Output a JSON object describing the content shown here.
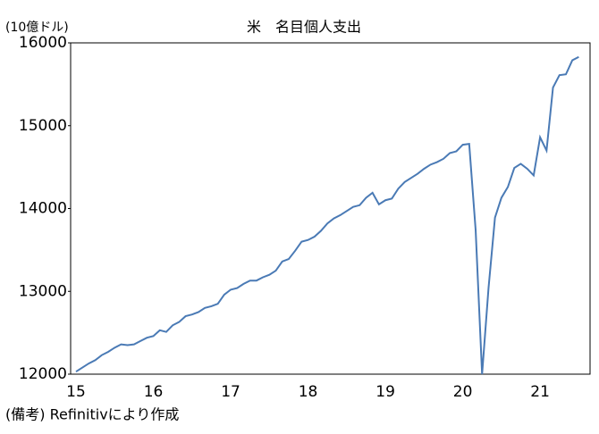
{
  "chart_data": {
    "type": "line",
    "title": "米　名目個人支出",
    "y_label": "(10億ドル)",
    "note": "(備考) Refinitivにより作成",
    "categories": [
      "15",
      null,
      null,
      null,
      null,
      null,
      null,
      null,
      null,
      null,
      null,
      null,
      "16",
      null,
      null,
      null,
      null,
      null,
      null,
      null,
      null,
      null,
      null,
      null,
      "17",
      null,
      null,
      null,
      null,
      null,
      null,
      null,
      null,
      null,
      null,
      null,
      "18",
      null,
      null,
      null,
      null,
      null,
      null,
      null,
      null,
      null,
      null,
      null,
      "19",
      null,
      null,
      null,
      null,
      null,
      null,
      null,
      null,
      null,
      null,
      null,
      "20",
      null,
      null,
      null,
      null,
      null,
      null,
      null,
      null,
      null,
      null,
      null,
      "21",
      null,
      null,
      null,
      null,
      null,
      null
    ],
    "series": [
      {
        "name": "名目個人支出",
        "color": "#4a7ab5",
        "values": [
          12030,
          12080,
          12130,
          12170,
          12230,
          12270,
          12320,
          12360,
          12350,
          12360,
          12400,
          12440,
          12460,
          12530,
          12510,
          12590,
          12630,
          12700,
          12720,
          12750,
          12800,
          12820,
          12850,
          12960,
          13020,
          13040,
          13090,
          13130,
          13130,
          13170,
          13200,
          13250,
          13360,
          13390,
          13490,
          13600,
          13620,
          13660,
          13730,
          13820,
          13880,
          13920,
          13970,
          14020,
          14040,
          14130,
          14190,
          14050,
          14100,
          14120,
          14240,
          14320,
          14370,
          14420,
          14480,
          14530,
          14560,
          14600,
          14670,
          14690,
          14770,
          14780,
          13740,
          12000,
          13040,
          13890,
          14130,
          14260,
          14490,
          14540,
          14480,
          14400,
          14860,
          14700,
          15460,
          15610,
          15620,
          15790,
          15830
        ]
      }
    ],
    "ylim": [
      12000,
      16000
    ],
    "yticks": [
      12000,
      13000,
      14000,
      15000,
      16000
    ],
    "grid": false
  }
}
